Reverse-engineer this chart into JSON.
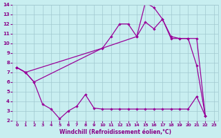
{
  "xlabel": "Windchill (Refroidissement éolien,°C)",
  "background_color": "#c8eef0",
  "grid_color": "#a0c8d0",
  "line_color": "#990099",
  "xlim": [
    -0.5,
    23.5
  ],
  "ylim": [
    2,
    14
  ],
  "xticks": [
    0,
    1,
    2,
    3,
    4,
    5,
    6,
    7,
    8,
    9,
    10,
    11,
    12,
    13,
    14,
    15,
    16,
    17,
    18,
    19,
    20,
    21,
    22,
    23
  ],
  "yticks": [
    2,
    3,
    4,
    5,
    6,
    7,
    8,
    9,
    10,
    11,
    12,
    13,
    14
  ],
  "line1_x": [
    0,
    1,
    2,
    10,
    11,
    12,
    13,
    14,
    15,
    16,
    17,
    18,
    19,
    20,
    21,
    22
  ],
  "line1_y": [
    7.5,
    7.0,
    6.0,
    9.5,
    10.7,
    12.0,
    12.0,
    10.7,
    12.2,
    11.5,
    12.5,
    10.5,
    10.5,
    10.5,
    7.7,
    2.5
  ],
  "line2_x": [
    0,
    1,
    2,
    3,
    4,
    5,
    6,
    7,
    8,
    9,
    10,
    11,
    12,
    13,
    14,
    15,
    16,
    17,
    18,
    19,
    20,
    21,
    22
  ],
  "line2_y": [
    7.5,
    7.0,
    6.0,
    3.7,
    3.2,
    2.2,
    3.0,
    3.5,
    4.7,
    3.3,
    3.2,
    3.2,
    3.2,
    3.2,
    3.2,
    3.2,
    3.2,
    3.2,
    3.2,
    3.2,
    3.2,
    4.5,
    2.5
  ],
  "line3_x": [
    0,
    1,
    10,
    14,
    15,
    16,
    17,
    18,
    19,
    20,
    21,
    22
  ],
  "line3_y": [
    7.5,
    7.0,
    9.5,
    10.7,
    14.2,
    13.7,
    12.5,
    10.7,
    10.5,
    10.5,
    10.5,
    2.5
  ]
}
